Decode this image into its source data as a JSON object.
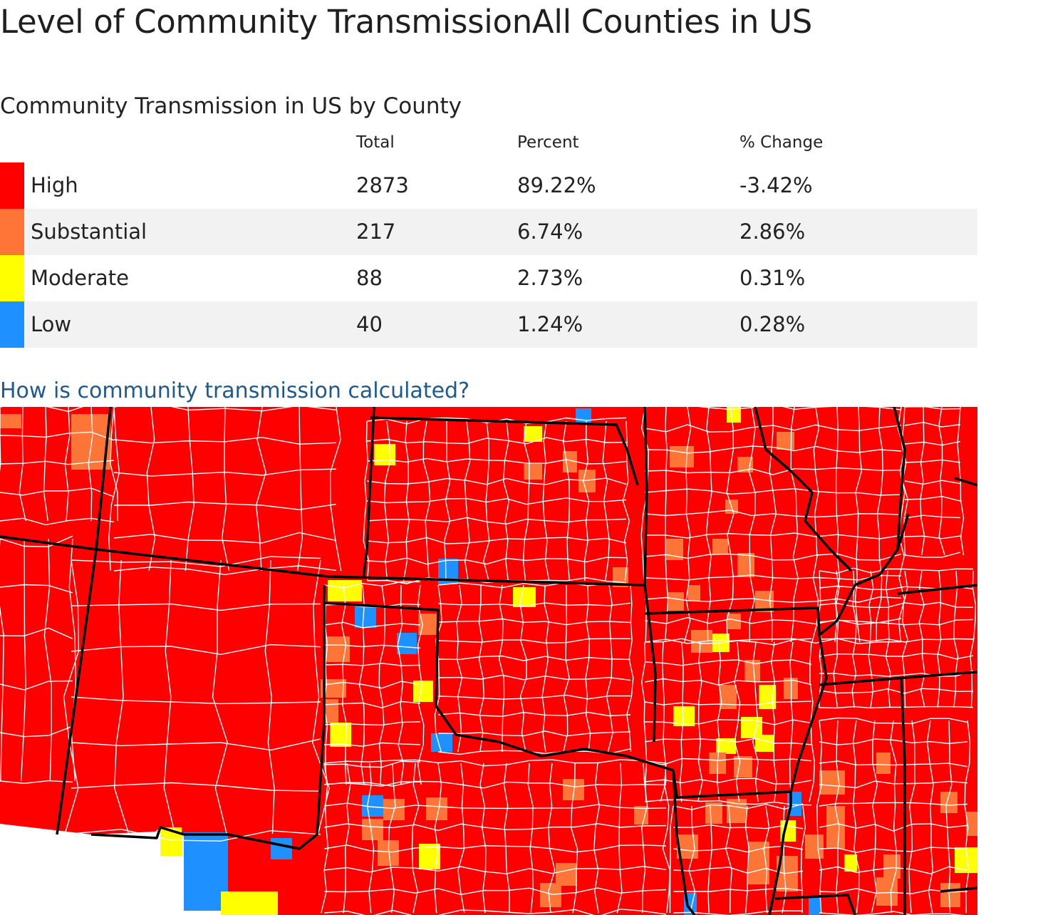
{
  "page": {
    "title": "Level of Community TransmissionAll Counties in US"
  },
  "summary": {
    "title": "Community Transmission in US by County",
    "headers": {
      "total": "Total",
      "percent": "Percent",
      "change": "% Change"
    },
    "rows": [
      {
        "level": "High",
        "total": "2873",
        "percent": "89.22%",
        "change": "-3.42%",
        "color": "#ff0000"
      },
      {
        "level": "Substantial",
        "total": "217",
        "percent": "6.74%",
        "change": "2.86%",
        "color": "#ff7537"
      },
      {
        "level": "Moderate",
        "total": "88",
        "percent": "2.73%",
        "change": "0.31%",
        "color": "#ffff00"
      },
      {
        "level": "Low",
        "total": "40",
        "percent": "1.24%",
        "change": "0.28%",
        "color": "#1e90ff"
      }
    ]
  },
  "link": {
    "label": "How is community transmission calculated?"
  },
  "colors": {
    "high": "#ff0000",
    "substantial": "#ff7537",
    "moderate": "#ffff00",
    "low": "#1e90ff",
    "county_border": "#ffffff",
    "state_border": "#000000",
    "link": "#1f5a8c"
  }
}
